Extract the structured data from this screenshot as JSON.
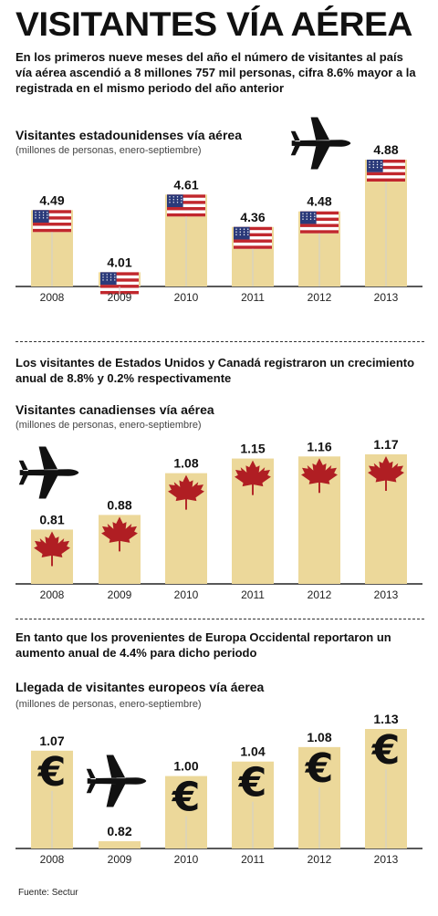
{
  "header": {
    "title": "VISITANTES VÍA AÉREA",
    "intro": "En los primeros nueve meses del año el número de visitantes al país vía aérea ascendió a 8 millones 757 mil personas, cifra 8.6% mayor a la registrada en el mismo periodo del año anterior"
  },
  "sections": {
    "canada_lead": "Los visitantes de Estados Unidos y Canadá registraron un crecimiento anual de 8.8% y 0.2% respectivamente",
    "europe_lead": "En tanto que los provenientes de Europa Occidental reportaron un aumento anual de 4.4% para dicho periodo"
  },
  "source": "Fuente: Sectur",
  "colors": {
    "bar": "#ecd89a",
    "axis": "#222222",
    "maple": "#b01e23",
    "plane": "#111111"
  },
  "chart_data": [
    {
      "type": "bar",
      "id": "us",
      "title": "Visitantes estadounidenses vía aérea",
      "subtitle": "(millones de personas, enero-septiembre)",
      "categories": [
        "2008",
        "2009",
        "2010",
        "2011",
        "2012",
        "2013"
      ],
      "values": [
        4.49,
        4.01,
        4.61,
        4.36,
        4.48,
        4.88
      ],
      "labels": [
        "4.49",
        "4.01",
        "4.61",
        "4.36",
        "4.48",
        "4.88"
      ],
      "icon": "us-flag-icon"
    },
    {
      "type": "bar",
      "id": "canada",
      "title": "Visitantes canadienses vía aérea",
      "subtitle": "(millones de personas, enero-septiembre)",
      "categories": [
        "2008",
        "2009",
        "2010",
        "2011",
        "2012",
        "2013"
      ],
      "values": [
        0.81,
        0.88,
        1.08,
        1.15,
        1.16,
        1.17
      ],
      "labels": [
        "0.81",
        "0.88",
        "1.08",
        "1.15",
        "1.16",
        "1.17"
      ],
      "icon": "maple-leaf-icon"
    },
    {
      "type": "bar",
      "id": "europe",
      "title": "Llegada de visitantes europeos vía áerea",
      "subtitle": "(millones de personas, enero-septiembre)",
      "categories": [
        "2008",
        "2009",
        "2010",
        "2011",
        "2012",
        "2013"
      ],
      "values": [
        1.07,
        0.82,
        1.0,
        1.04,
        1.08,
        1.13
      ],
      "labels": [
        "1.07",
        "0.82",
        "1.00",
        "1.04",
        "1.08",
        "1.13"
      ],
      "icon": "euro-icon"
    }
  ]
}
